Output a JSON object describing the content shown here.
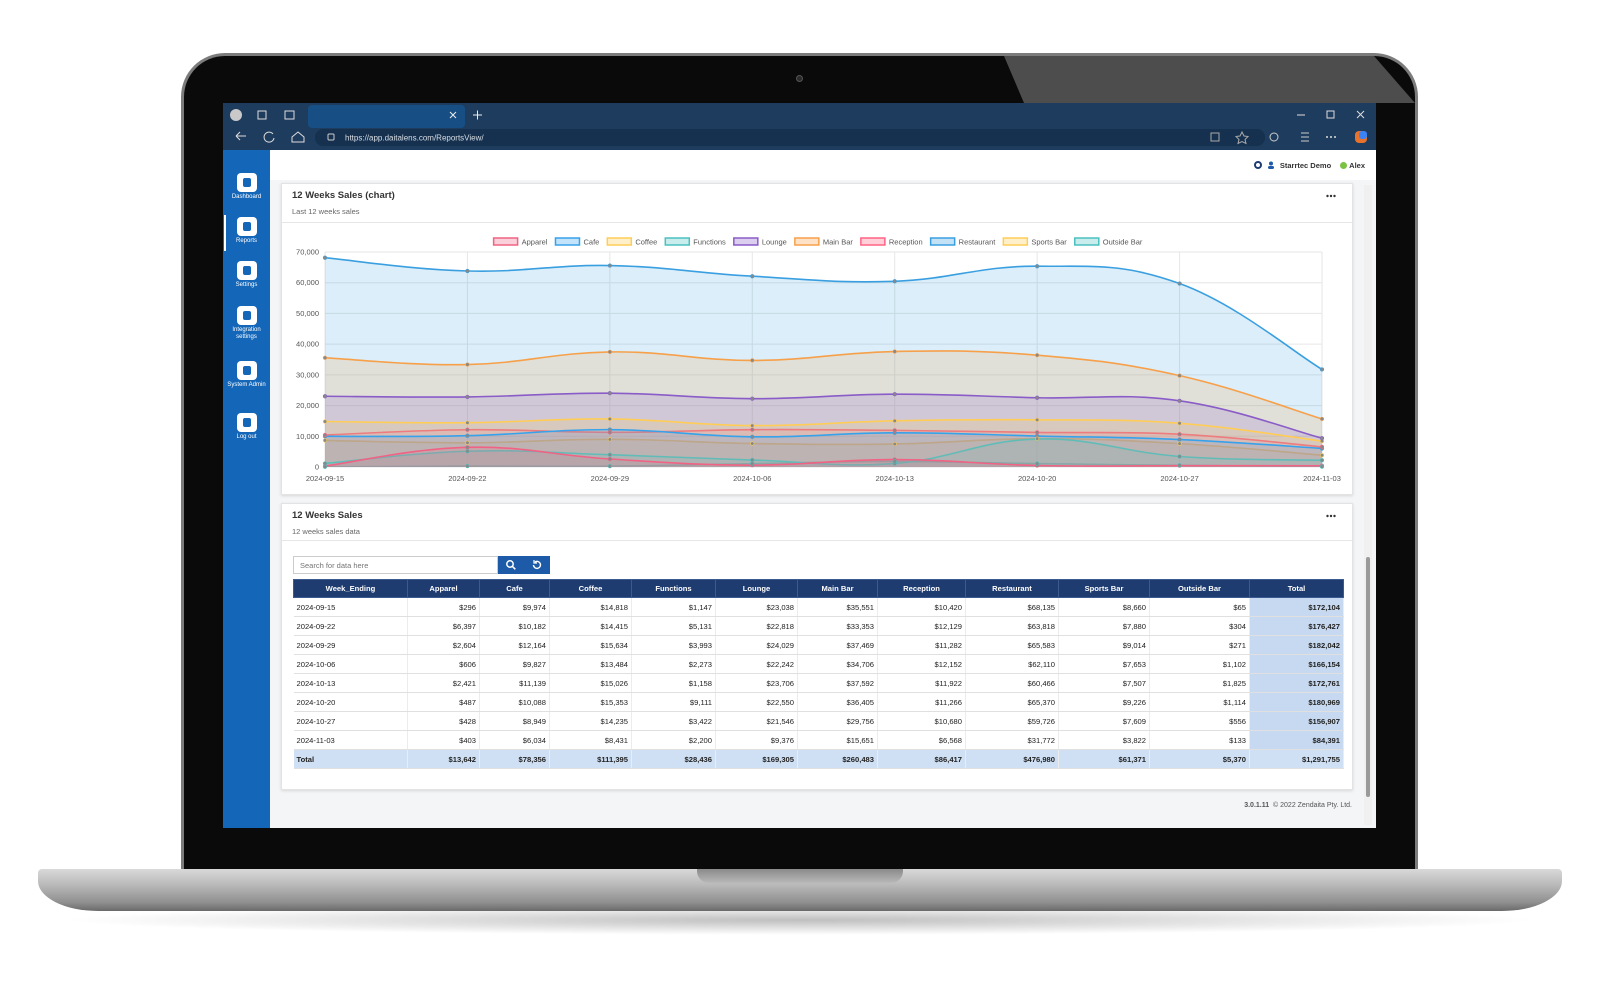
{
  "browser": {
    "url": "https://app.daitalens.com/ReportsView/"
  },
  "sidebar": {
    "items": [
      "Dashboard",
      "Reports",
      "Settings",
      "Integration settings",
      "System Admin",
      "Log out"
    ],
    "active": 1
  },
  "header": {
    "company": "Starrtec Demo",
    "user": "Alex"
  },
  "chart_data": {
    "type": "area",
    "title": "12 Weeks Sales (chart)",
    "subtitle": "Last 12 weeks sales",
    "categories": [
      "2024-09-15",
      "2024-09-22",
      "2024-09-29",
      "2024-10-06",
      "2024-10-13",
      "2024-10-20",
      "2024-10-27",
      "2024-11-03"
    ],
    "series": [
      {
        "name": "Apparel",
        "color": "#f06384",
        "values": [
          296,
          6397,
          2604,
          606,
          2421,
          487,
          428,
          403
        ],
        "value_labels": [
          "$296",
          "$6,397",
          "$2,604",
          "$606",
          "$2,421",
          "$487",
          "$428",
          "$403"
        ]
      },
      {
        "name": "Cafe",
        "color": "#36a2eb",
        "values": [
          9974,
          10182,
          12164,
          9827,
          11139,
          10088,
          8949,
          6034
        ],
        "value_labels": [
          "$9,974",
          "$10,182",
          "$12,164",
          "$9,827",
          "$11,139",
          "$10,088",
          "$8,949",
          "$6,034"
        ]
      },
      {
        "name": "Coffee",
        "color": "#ffcd56",
        "values": [
          14818,
          14415,
          15634,
          13484,
          15026,
          15353,
          14235,
          8431
        ],
        "value_labels": [
          "$14,818",
          "$14,415",
          "$15,634",
          "$13,484",
          "$15,026",
          "$15,353",
          "$14,235",
          "$8,431"
        ]
      },
      {
        "name": "Functions",
        "color": "#4bc0c0",
        "values": [
          1147,
          5131,
          3993,
          2273,
          1158,
          9111,
          3422,
          2200
        ],
        "value_labels": [
          "$1,147",
          "$5,131",
          "$3,993",
          "$2,273",
          "$1,158",
          "$9,111",
          "$3,422",
          "$2,200"
        ]
      },
      {
        "name": "Lounge",
        "color": "#8a5cc7",
        "values": [
          23038,
          22818,
          24029,
          22242,
          23706,
          22550,
          21546,
          9376
        ],
        "value_labels": [
          "$23,038",
          "$22,818",
          "$24,029",
          "$22,242",
          "$23,706",
          "$22,550",
          "$21,546",
          "$9,376"
        ]
      },
      {
        "name": "Main Bar",
        "color": "#f7a04a",
        "values": [
          35551,
          33353,
          37469,
          34706,
          37592,
          36405,
          29756,
          15651
        ],
        "value_labels": [
          "$35,551",
          "$33,353",
          "$37,469",
          "$34,706",
          "$37,592",
          "$36,405",
          "$29,756",
          "$15,651"
        ]
      },
      {
        "name": "Reception",
        "color": "#ff6384",
        "values": [
          10420,
          12129,
          11282,
          12152,
          11922,
          11266,
          10680,
          6568
        ],
        "value_labels": [
          "$10,420",
          "$12,129",
          "$11,282",
          "$12,152",
          "$11,922",
          "$11,266",
          "$10,680",
          "$6,568"
        ]
      },
      {
        "name": "Restaurant",
        "color": "#3a9fe0",
        "values": [
          68135,
          63818,
          65583,
          62110,
          60466,
          65370,
          59726,
          31772
        ],
        "value_labels": [
          "$68,135",
          "$63,818",
          "$65,583",
          "$62,110",
          "$60,466",
          "$65,370",
          "$59,726",
          "$31,772"
        ]
      },
      {
        "name": "Sports Bar",
        "color": "#ffcd56",
        "values": [
          8660,
          7880,
          9014,
          7653,
          7507,
          9226,
          7609,
          3822
        ],
        "value_labels": [
          "$8,660",
          "$7,880",
          "$9,014",
          "$7,653",
          "$7,507",
          "$9,226",
          "$7,609",
          "$3,822"
        ]
      },
      {
        "name": "Outside Bar",
        "color": "#4bc0c0",
        "values": [
          65,
          304,
          271,
          1102,
          1825,
          1114,
          556,
          133
        ],
        "value_labels": [
          "$65",
          "$304",
          "$271",
          "$1,102",
          "$1,825",
          "$1,114",
          "$556",
          "$133"
        ]
      }
    ],
    "ylim": [
      0,
      70000
    ],
    "yticks": [
      0,
      {
        "value": 10000,
        "label": "10,000"
      },
      {
        "value": 20000,
        "label": "20,000"
      },
      {
        "value": 30000,
        "label": "30,000"
      },
      {
        "value": 40000,
        "label": "40,000"
      },
      {
        "value": 50000,
        "label": "50,000"
      },
      {
        "value": 60000,
        "label": "60,000"
      },
      {
        "value": 70000,
        "label": "70,000"
      }
    ],
    "grid": true,
    "legend": "top"
  },
  "table_card": {
    "title": "12 Weeks Sales",
    "subtitle": "12 weeks sales data",
    "search_placeholder": "Search for data here"
  },
  "table": {
    "header_week": "Week_Ending",
    "header_total": "Total",
    "row_totals": [
      "$172,104",
      "$176,427",
      "$182,042",
      "$166,154",
      "$172,761",
      "$180,969",
      "$156,907",
      "$84,391"
    ],
    "footer_label": "Total",
    "column_totals": [
      "$13,642",
      "$78,356",
      "$111,395",
      "$28,436",
      "$169,305",
      "$260,483",
      "$86,417",
      "$476,980",
      "$61,371",
      "$5,370"
    ],
    "grand_total": "$1,291,755"
  },
  "footer": {
    "version": "3.0.1.11",
    "copyright": "© 2022 Zendaita Pty. Ltd."
  }
}
